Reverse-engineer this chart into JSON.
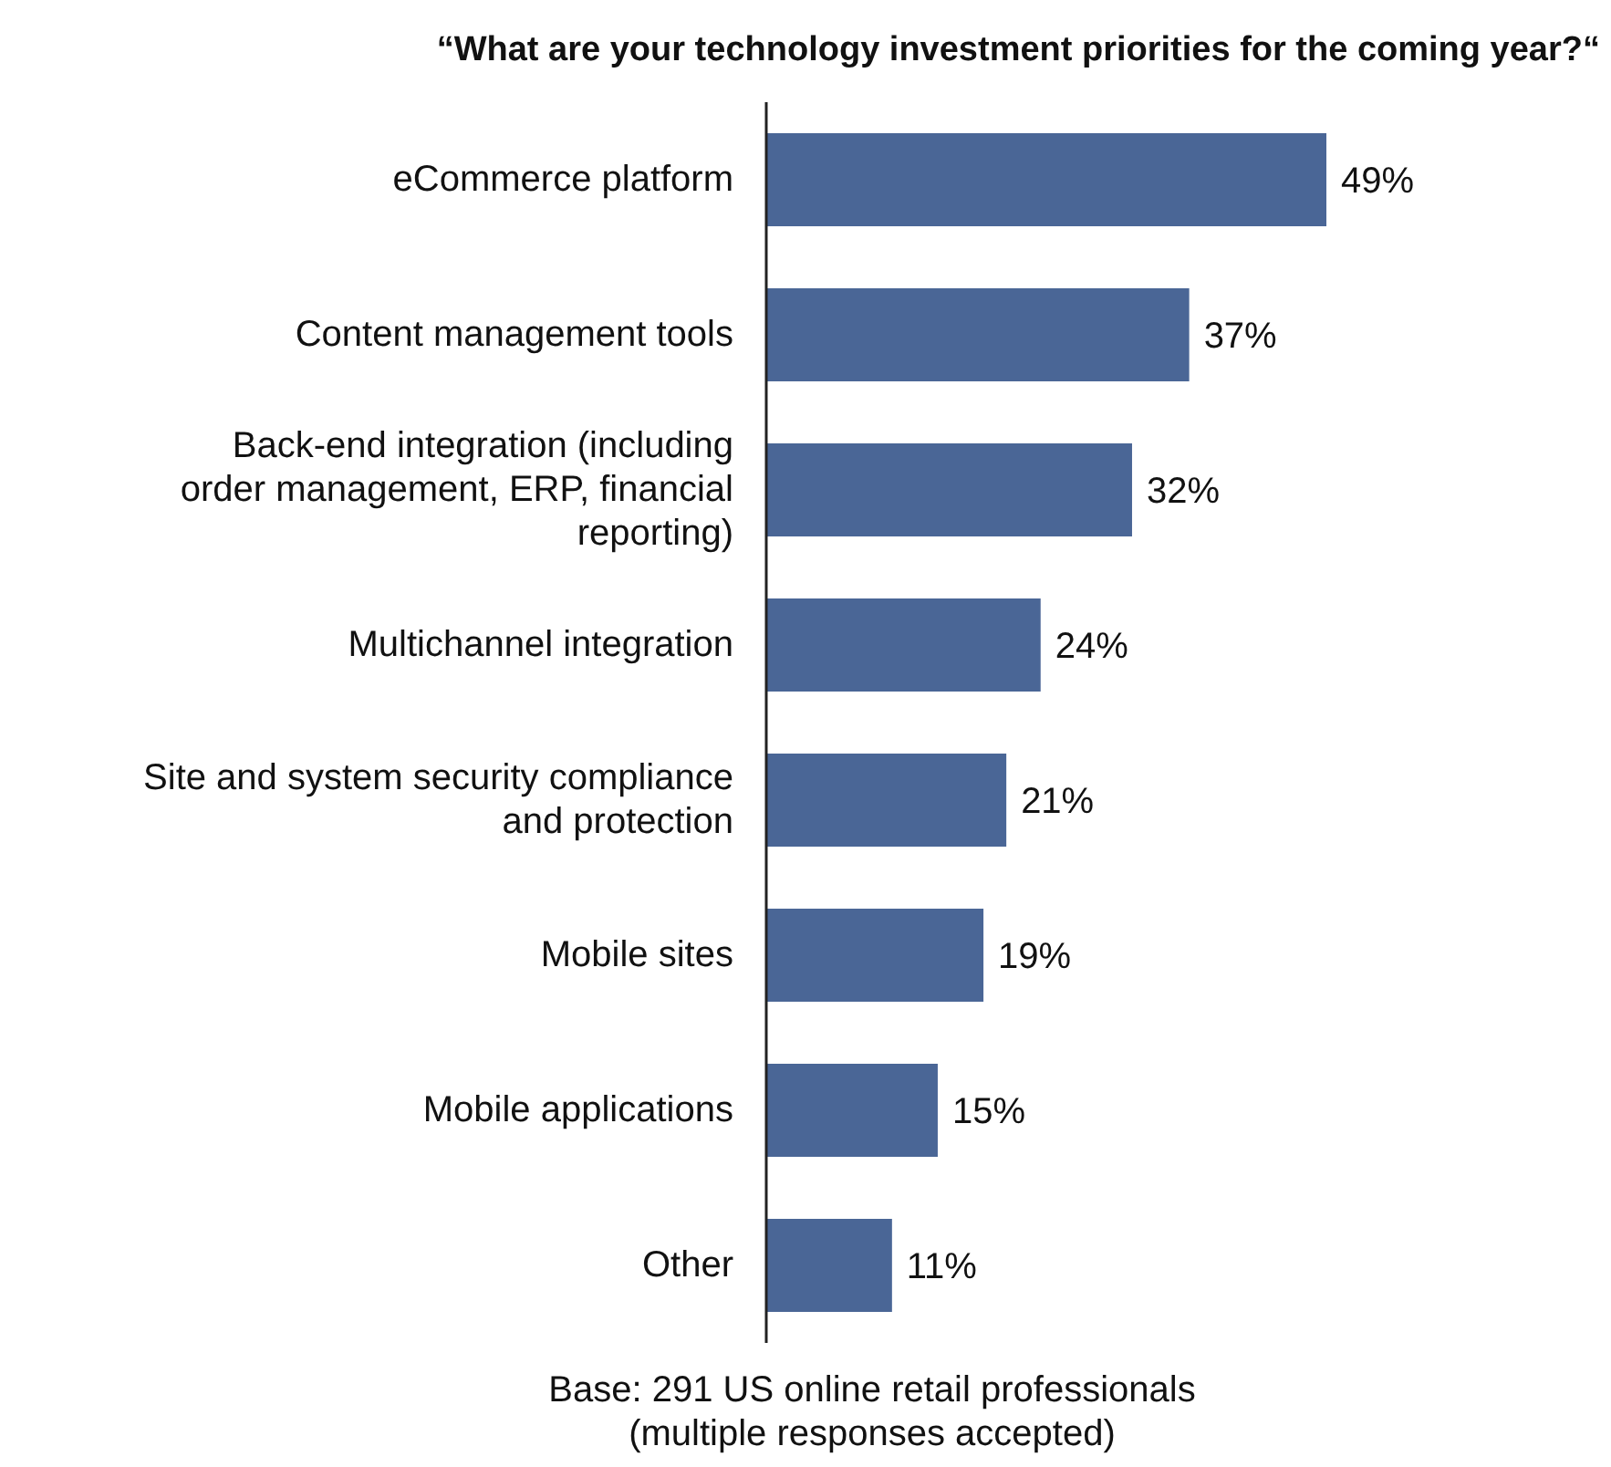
{
  "chart_data": {
    "type": "bar",
    "orientation": "horizontal",
    "title": "“What are your technology investment priorities for the coming year?“",
    "categories": [
      "eCommerce platform",
      "Content management tools",
      "Back-end integration (including order management, ERP, financial reporting)",
      "Multichannel integration",
      "Site and system security compliance and protection",
      "Mobile sites",
      "Mobile applications",
      "Other"
    ],
    "values": [
      49,
      37,
      32,
      24,
      21,
      19,
      15,
      11
    ],
    "value_labels": [
      "49%",
      "37%",
      "32%",
      "24%",
      "21%",
      "19%",
      "15%",
      "11%"
    ],
    "color": "#4a6696",
    "annotations": [
      "Base: 291 US online retail professionals\n(multiple responses accepted)"
    ]
  }
}
